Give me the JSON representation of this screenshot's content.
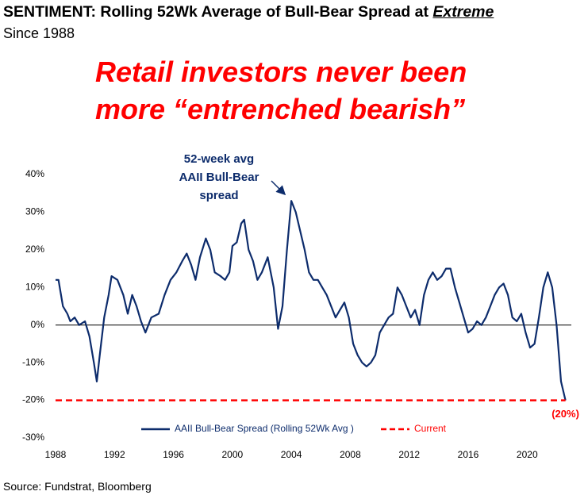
{
  "chart_data": {
    "type": "line",
    "title": "SENTIMENT: Rolling 52Wk Average of Bull-Bear Spread at",
    "title_emphasis": "Extreme",
    "subtitle": "Since 1988",
    "headline": [
      "Retail investors never been",
      "more “entrenched bearish”"
    ],
    "annotation": [
      "52-week avg",
      "AAII Bull-Bear",
      "spread"
    ],
    "source": "Source: Fundstrat, Bloomberg",
    "xlim": [
      1988,
      2023
    ],
    "xticks": [
      1988,
      1992,
      1996,
      2000,
      2004,
      2008,
      2012,
      2016,
      2020
    ],
    "ylim": [
      -30,
      40
    ],
    "yticks": [
      {
        "value": -30,
        "label": "-30%"
      },
      {
        "value": -20,
        "label": "-20%"
      },
      {
        "value": -10,
        "label": "-10%"
      },
      {
        "value": 0,
        "label": "0%"
      },
      {
        "value": 10,
        "label": "10%"
      },
      {
        "value": 20,
        "label": "20%"
      },
      {
        "value": 30,
        "label": "30%"
      },
      {
        "value": 40,
        "label": "40%"
      }
    ],
    "grid": false,
    "zero_line": true,
    "legend": "bottom",
    "series": [
      {
        "name": "AAII Bull-Bear Spread (Rolling 52Wk Avg )",
        "color": "#0d2c6c",
        "style": "solid",
        "x": [
          1988.0,
          1988.2,
          1988.5,
          1988.8,
          1989.0,
          1989.3,
          1989.6,
          1990.0,
          1990.3,
          1990.6,
          1990.8,
          1991.0,
          1991.3,
          1991.6,
          1991.8,
          1992.2,
          1992.6,
          1992.9,
          1993.2,
          1993.5,
          1993.8,
          1994.1,
          1994.5,
          1995.0,
          1995.4,
          1995.8,
          1996.2,
          1996.6,
          1996.9,
          1997.2,
          1997.5,
          1997.8,
          1998.2,
          1998.5,
          1998.8,
          1999.2,
          1999.5,
          1999.8,
          2000.0,
          2000.3,
          2000.6,
          2000.8,
          2001.1,
          2001.4,
          2001.7,
          2002.0,
          2002.4,
          2002.8,
          2003.1,
          2003.4,
          2003.7,
          2004.0,
          2004.3,
          2004.6,
          2004.9,
          2005.2,
          2005.5,
          2005.8,
          2006.1,
          2006.4,
          2006.7,
          2007.0,
          2007.3,
          2007.6,
          2007.9,
          2008.2,
          2008.5,
          2008.8,
          2009.1,
          2009.4,
          2009.7,
          2010.0,
          2010.3,
          2010.6,
          2010.9,
          2011.2,
          2011.5,
          2011.8,
          2012.1,
          2012.4,
          2012.7,
          2013.0,
          2013.3,
          2013.6,
          2013.9,
          2014.2,
          2014.5,
          2014.8,
          2015.1,
          2015.4,
          2015.7,
          2016.0,
          2016.3,
          2016.6,
          2016.9,
          2017.2,
          2017.5,
          2017.8,
          2018.1,
          2018.4,
          2018.7,
          2019.0,
          2019.3,
          2019.6,
          2019.9,
          2020.2,
          2020.5,
          2020.8,
          2021.1,
          2021.4,
          2021.7,
          2022.0,
          2022.3,
          2022.6
        ],
        "values": [
          12,
          12,
          5,
          3,
          1,
          2,
          0,
          1,
          -3,
          -10,
          -15,
          -8,
          2,
          8,
          13,
          12,
          8,
          3,
          8,
          5,
          1,
          -2,
          2,
          3,
          8,
          12,
          14,
          17,
          19,
          16,
          12,
          18,
          23,
          20,
          14,
          13,
          12,
          14,
          21,
          22,
          27,
          28,
          20,
          17,
          12,
          14,
          18,
          10,
          -1,
          5,
          20,
          33,
          30,
          25,
          20,
          14,
          12,
          12,
          10,
          8,
          5,
          2,
          4,
          6,
          2,
          -5,
          -8,
          -10,
          -11,
          -10,
          -8,
          -2,
          0,
          2,
          3,
          10,
          8,
          5,
          2,
          4,
          0,
          8,
          12,
          14,
          12,
          13,
          15,
          15,
          10,
          6,
          2,
          -2,
          -1,
          1,
          0,
          2,
          5,
          8,
          10,
          11,
          8,
          2,
          1,
          3,
          -2,
          -6,
          -5,
          2,
          10,
          14,
          10,
          0,
          -15,
          -20
        ]
      },
      {
        "name": "Current",
        "color": "#ff0000",
        "style": "dashed",
        "x": [
          1988.0,
          2022.6
        ],
        "values": [
          -20,
          -20
        ],
        "value_labels": [
          null,
          "(20%)"
        ]
      }
    ]
  }
}
